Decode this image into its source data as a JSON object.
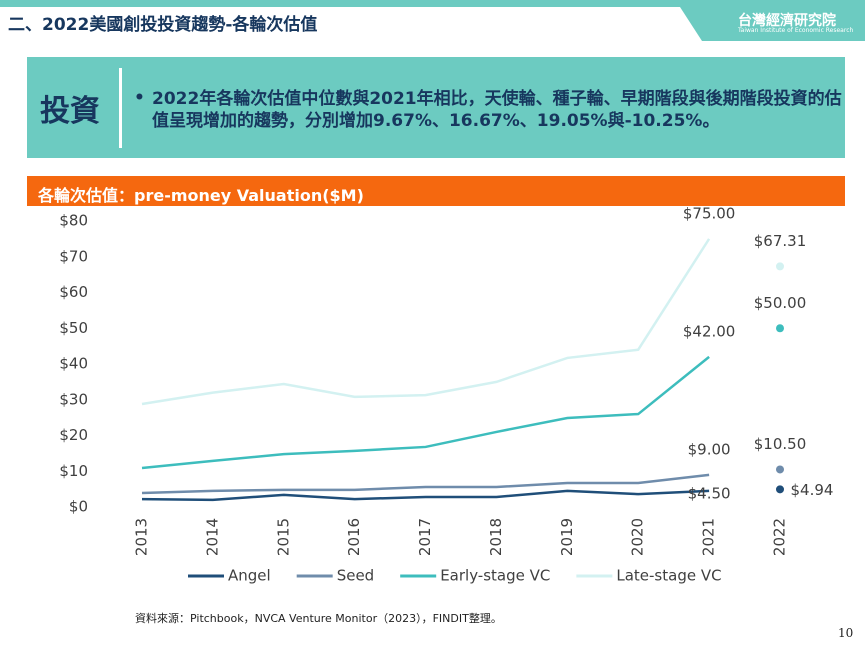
{
  "header": {
    "title": "二、2022美國創投投資趨勢-各輪次估值",
    "logo": "台灣經濟研究院",
    "logo_sub": "Taiwan Institute of Economic Research"
  },
  "summary": {
    "label": "投資",
    "text": "2022年各輪次估值中位數與2021年相比，天使輪、種子輪、早期階段與後期階段投資的估值呈現增加的趨勢，分別增加9.67%、16.67%、19.05%與-10.25%。"
  },
  "chart_data": {
    "type": "line",
    "title": "各輪次估值：pre-money Valuation($M)",
    "categories": [
      "2013",
      "2014",
      "2015",
      "2016",
      "2017",
      "2018",
      "2019",
      "2020",
      "2021",
      "2022"
    ],
    "series": [
      {
        "name": "Angel",
        "color": "#1f4e79",
        "values": [
          2.2,
          2,
          3.4,
          2.2,
          2.8,
          2.8,
          4.5,
          3.6,
          4.5,
          4.94
        ],
        "value_labels": [
          null,
          null,
          null,
          null,
          null,
          null,
          null,
          null,
          "$4.50",
          "$4.94"
        ]
      },
      {
        "name": "Seed",
        "color": "#6f8cab",
        "values": [
          3.9,
          4.5,
          4.8,
          4.8,
          5.6,
          5.6,
          6.7,
          6.7,
          9,
          10.5
        ],
        "value_labels": [
          null,
          null,
          null,
          null,
          null,
          null,
          null,
          null,
          "$9.00",
          "$10.50"
        ]
      },
      {
        "name": "Early-stage VC",
        "color": "#3dbdbd",
        "values": [
          10.9,
          12.9,
          14.8,
          15.7,
          16.8,
          21,
          24.9,
          26,
          42,
          50
        ],
        "value_labels": [
          null,
          null,
          null,
          null,
          null,
          null,
          null,
          null,
          "$42.00",
          "$50.00"
        ]
      },
      {
        "name": "Late-stage VC",
        "color": "#d3f1f1",
        "values": [
          28.8,
          32,
          34.4,
          30.8,
          31.3,
          35,
          41.7,
          44,
          75,
          67.31
        ],
        "value_labels": [
          null,
          null,
          null,
          null,
          null,
          null,
          null,
          null,
          "$75.00",
          "$67.31"
        ]
      }
    ],
    "ylim": [
      0,
      80
    ],
    "yticks": [
      {
        "value": 0,
        "label": "$0"
      },
      {
        "value": 10,
        "label": "$10"
      },
      {
        "value": 20,
        "label": "$20"
      },
      {
        "value": 30,
        "label": "$30"
      },
      {
        "value": 40,
        "label": "$40"
      },
      {
        "value": 50,
        "label": "$50"
      },
      {
        "value": 60,
        "label": "$60"
      },
      {
        "value": 70,
        "label": "$70"
      },
      {
        "value": 80,
        "label": "$80"
      }
    ],
    "grid": false,
    "legend": "bottom"
  },
  "source": "資料來源：Pitchbook，NVCA Venture Monitor（2023），FINDIT整理。",
  "page_number": "10"
}
